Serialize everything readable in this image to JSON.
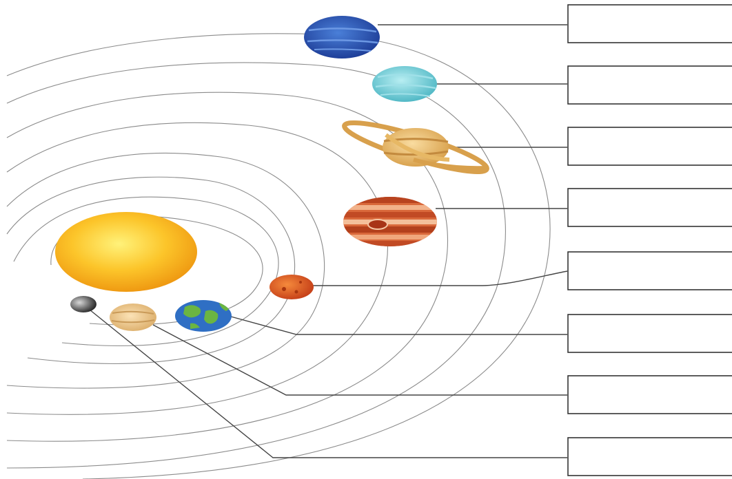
{
  "diagram": {
    "type": "solar-system-labeling-worksheet",
    "bodies": [
      {
        "id": "sun",
        "icon": "sun-icon"
      },
      {
        "id": "mercury",
        "icon": "mercury-icon"
      },
      {
        "id": "venus",
        "icon": "venus-icon"
      },
      {
        "id": "earth",
        "icon": "earth-icon"
      },
      {
        "id": "mars",
        "icon": "mars-icon"
      },
      {
        "id": "jupiter",
        "icon": "jupiter-icon"
      },
      {
        "id": "saturn",
        "icon": "saturn-icon"
      },
      {
        "id": "uranus",
        "icon": "uranus-icon"
      },
      {
        "id": "neptune",
        "icon": "neptune-icon"
      }
    ],
    "label_boxes": [
      {
        "planet": "neptune",
        "text": ""
      },
      {
        "planet": "uranus",
        "text": ""
      },
      {
        "planet": "saturn",
        "text": ""
      },
      {
        "planet": "jupiter",
        "text": ""
      },
      {
        "planet": "mars",
        "text": ""
      },
      {
        "planet": "earth",
        "text": ""
      },
      {
        "planet": "venus",
        "text": ""
      },
      {
        "planet": "mercury",
        "text": ""
      }
    ],
    "colors": {
      "sun": "#f7b21c",
      "mercury": "#6e6e6e",
      "venus": "#e9c48a",
      "earth": "#2f6fc4",
      "mars": "#d9531f",
      "jupiter": "#c9512c",
      "saturn": "#e7b865",
      "uranus": "#6fc8d2",
      "neptune": "#2f58b6",
      "orbit": "#8a8a8a",
      "leader": "#444444"
    }
  }
}
